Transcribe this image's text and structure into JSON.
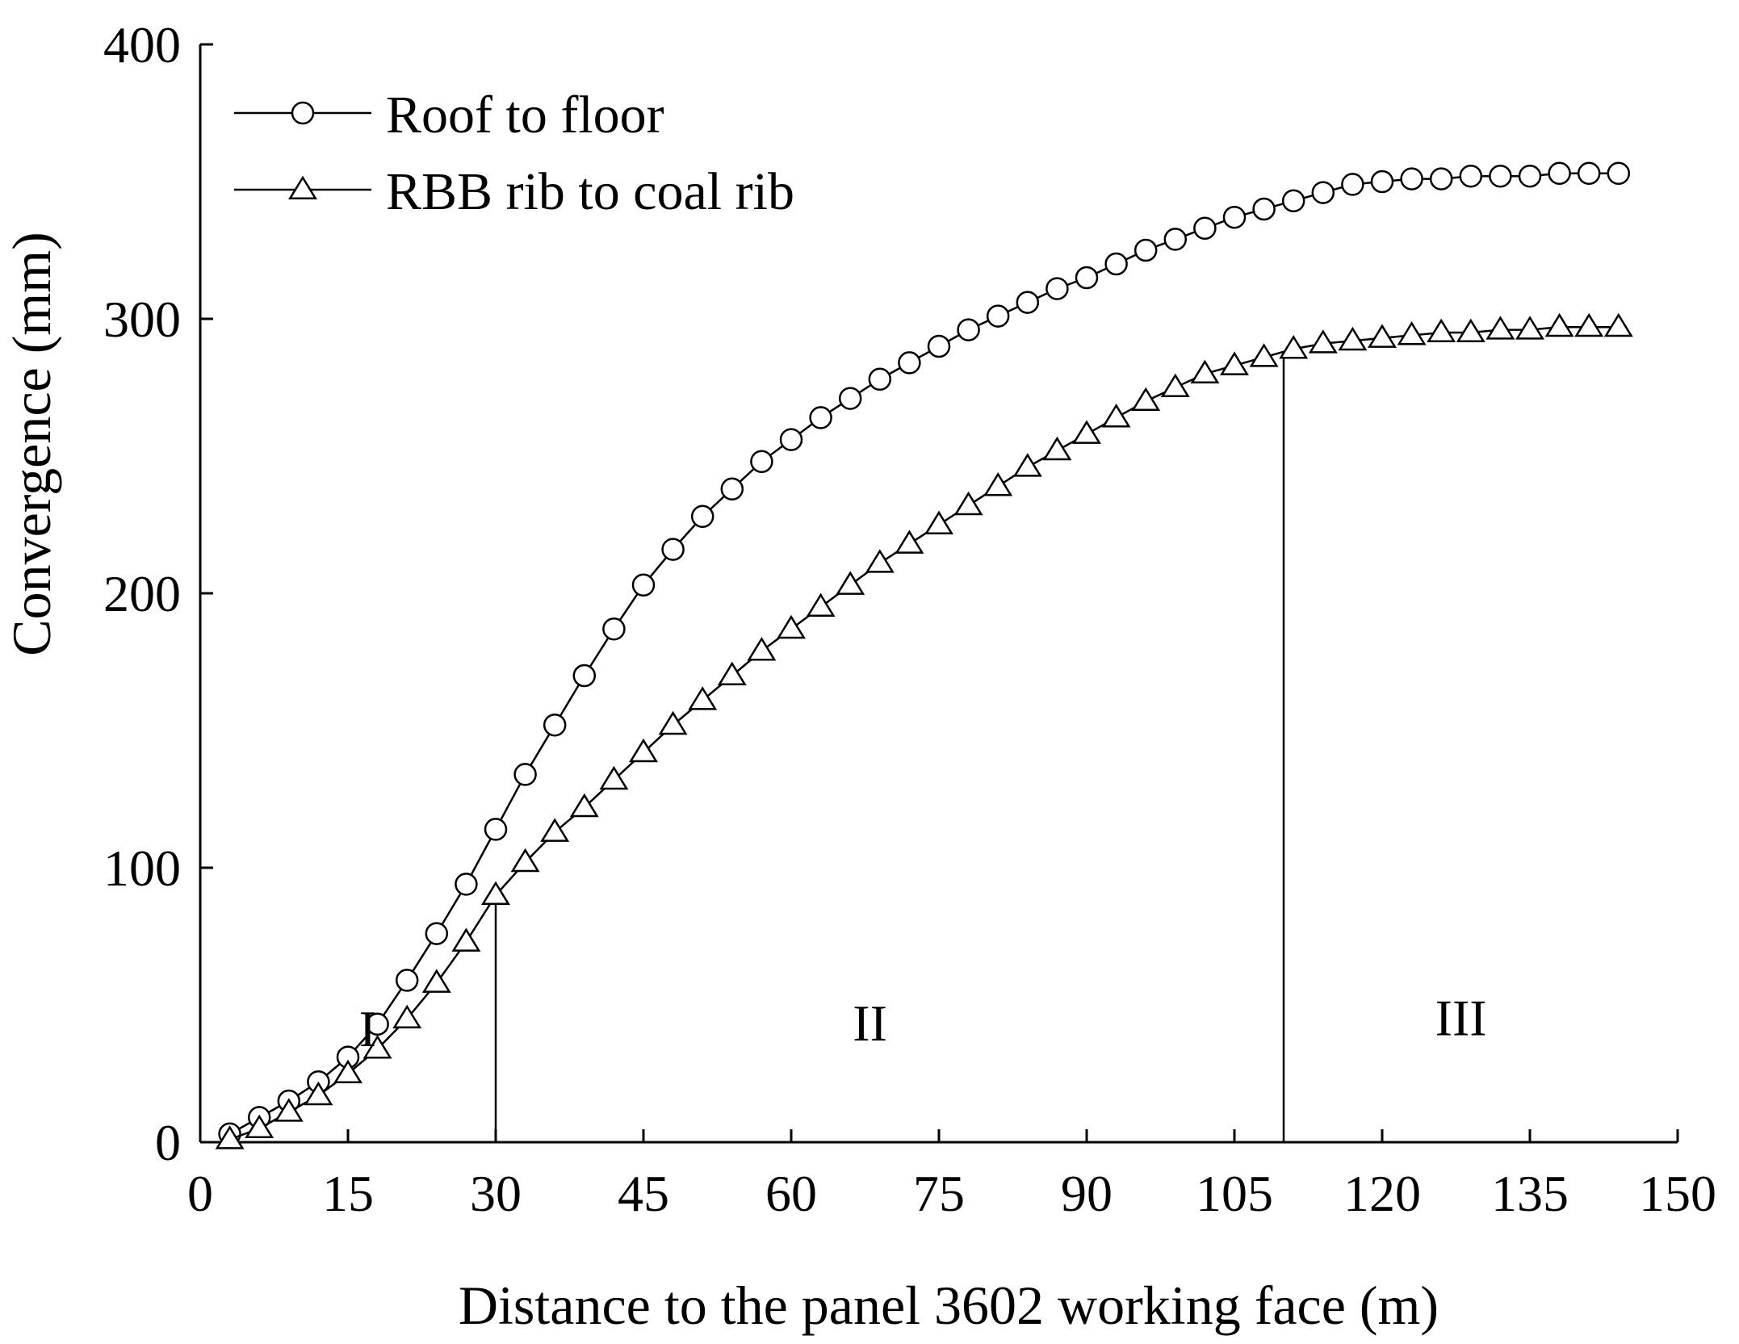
{
  "chart_data": {
    "type": "line",
    "title": "",
    "xlabel": "Distance to the panel 3602 working face  (m)",
    "ylabel": "Convergence (mm)",
    "xlim": [
      0,
      150
    ],
    "ylim": [
      0,
      400
    ],
    "xticks": [
      0,
      15,
      30,
      45,
      60,
      75,
      90,
      105,
      120,
      135,
      150
    ],
    "yticks": [
      0,
      100,
      200,
      300,
      400
    ],
    "grid": false,
    "legend_position": "top-left",
    "x": [
      3,
      6,
      9,
      12,
      15,
      18,
      21,
      24,
      27,
      30,
      33,
      36,
      39,
      42,
      45,
      48,
      51,
      54,
      57,
      60,
      63,
      66,
      69,
      72,
      75,
      78,
      81,
      84,
      87,
      90,
      93,
      96,
      99,
      102,
      105,
      108,
      111,
      114,
      117,
      120,
      123,
      126,
      129,
      132,
      135,
      138,
      141,
      144
    ],
    "series": [
      {
        "name": "Roof to floor",
        "marker": "circle",
        "values": [
          3,
          9,
          15,
          22,
          31,
          43,
          59,
          76,
          94,
          114,
          134,
          152,
          170,
          187,
          203,
          216,
          228,
          238,
          248,
          256,
          264,
          271,
          278,
          284,
          290,
          296,
          301,
          306,
          311,
          315,
          320,
          325,
          329,
          333,
          337,
          340,
          343,
          346,
          349,
          350,
          351,
          351,
          352,
          352,
          352,
          353,
          353,
          353
        ]
      },
      {
        "name": "RBB rib to coal rib",
        "marker": "triangle",
        "values": [
          1,
          5,
          11,
          17,
          25,
          34,
          45,
          58,
          73,
          90,
          102,
          113,
          122,
          132,
          142,
          152,
          161,
          170,
          179,
          187,
          195,
          203,
          211,
          218,
          225,
          232,
          239,
          246,
          252,
          258,
          264,
          270,
          275,
          280,
          283,
          286,
          289,
          291,
          292,
          293,
          294,
          295,
          295,
          296,
          296,
          297,
          297,
          297
        ]
      }
    ],
    "region_dividers_x": [
      30,
      110
    ],
    "region_labels": [
      {
        "text": "I",
        "x": 17,
        "y": 35
      },
      {
        "text": "II",
        "x": 68,
        "y": 37
      },
      {
        "text": "III",
        "x": 128,
        "y": 39
      }
    ]
  }
}
